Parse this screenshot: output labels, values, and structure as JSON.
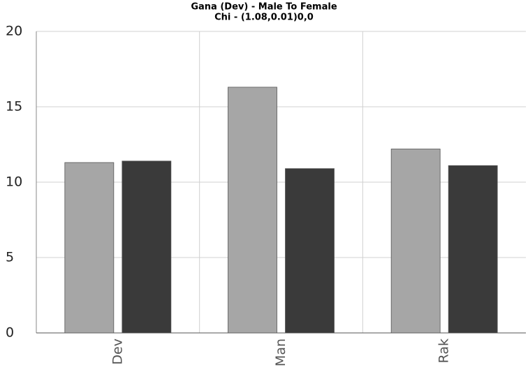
{
  "chart_data": {
    "type": "bar",
    "title": "Gana (Dev) - Male To Female",
    "subtitle": "Chi - (1.08,0.01)0,0",
    "categories": [
      "Dev",
      "Man",
      "Rak"
    ],
    "series": [
      {
        "color": "#a6a6a6",
        "values": [
          11.3,
          16.3,
          12.2
        ]
      },
      {
        "color": "#3a3a3a",
        "values": [
          11.4,
          10.9,
          11.1
        ]
      }
    ],
    "ylim": [
      0,
      20
    ],
    "yticks": [
      0,
      5,
      10,
      15,
      20
    ],
    "grid": true
  }
}
